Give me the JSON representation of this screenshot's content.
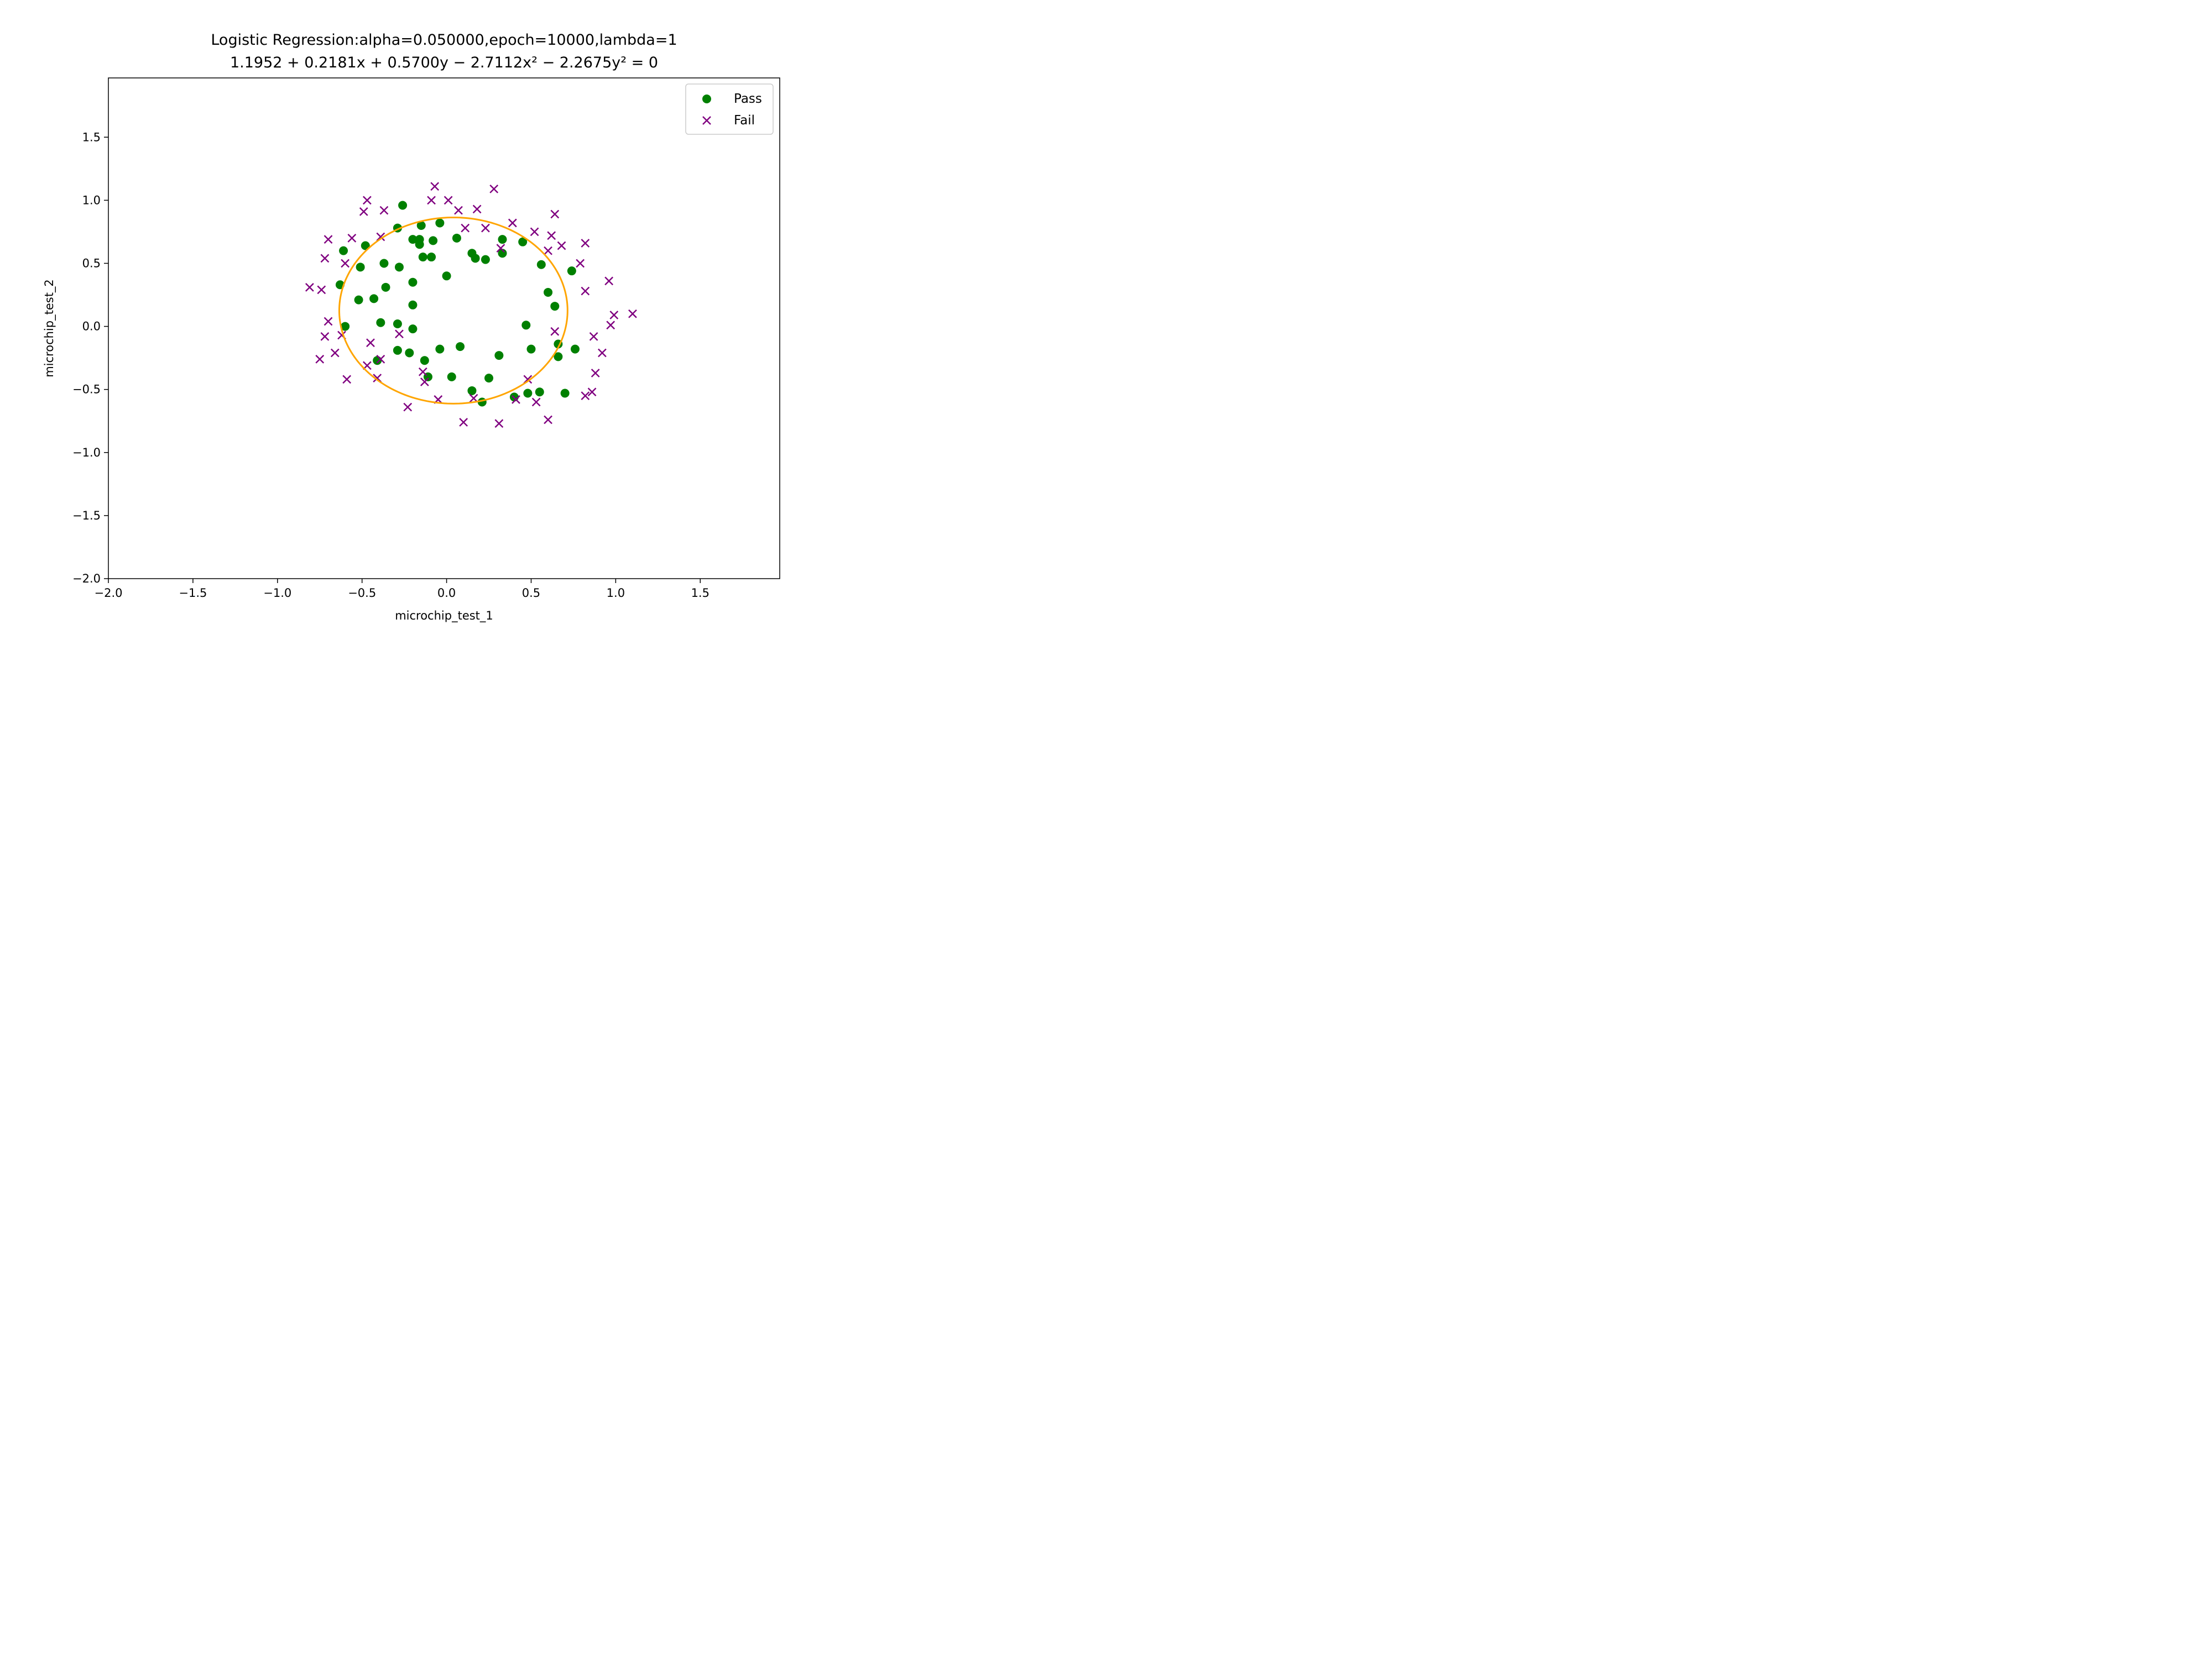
{
  "chart_data": {
    "type": "scatter",
    "title": "Logistic Regression:alpha=0.050000,epoch=10000,lambda=1",
    "subtitle": "1.1952 + 0.2181x + 0.5700y − 2.7112x² − 2.2675y² = 0",
    "xlabel": "microchip_test_1",
    "ylabel": "microchip_test_2",
    "xlim": [
      -2.0,
      1.97
    ],
    "ylim": [
      -2.0,
      1.97
    ],
    "xticks": [
      -2.0,
      -1.5,
      -1.0,
      -0.5,
      0.0,
      0.5,
      1.0,
      1.5
    ],
    "yticks": [
      -2.0,
      -1.5,
      -1.0,
      -0.5,
      0.0,
      0.5,
      1.0,
      1.5
    ],
    "xtick_labels": [
      "−2.0",
      "−1.5",
      "−1.0",
      "−0.5",
      "0.0",
      "0.5",
      "1.0",
      "1.5"
    ],
    "ytick_labels": [
      "−2.0",
      "−1.5",
      "−1.0",
      "−0.5",
      "0.0",
      "0.5",
      "1.0",
      "1.5"
    ],
    "grid": false,
    "legend_position": "top-right",
    "decision_boundary": {
      "type": "ellipse",
      "coefficients": {
        "c": 1.1952,
        "x": 0.2181,
        "y": 0.57,
        "x2": -2.7112,
        "y2": -2.2675
      },
      "color": "#ffa500"
    },
    "series": [
      {
        "name": "Pass",
        "marker": "circle",
        "color": "#008000",
        "points": [
          [
            -0.61,
            0.6
          ],
          [
            -0.48,
            0.64
          ],
          [
            -0.26,
            0.96
          ],
          [
            -0.29,
            0.78
          ],
          [
            -0.15,
            0.8
          ],
          [
            -0.04,
            0.82
          ],
          [
            -0.2,
            0.69
          ],
          [
            -0.16,
            0.65
          ],
          [
            -0.16,
            0.69
          ],
          [
            -0.08,
            0.68
          ],
          [
            -0.14,
            0.55
          ],
          [
            -0.09,
            0.55
          ],
          [
            -0.51,
            0.47
          ],
          [
            -0.37,
            0.5
          ],
          [
            -0.28,
            0.47
          ],
          [
            -0.2,
            0.35
          ],
          [
            0.0,
            0.4
          ],
          [
            0.06,
            0.7
          ],
          [
            0.15,
            0.58
          ],
          [
            0.17,
            0.54
          ],
          [
            0.23,
            0.53
          ],
          [
            0.33,
            0.69
          ],
          [
            0.33,
            0.58
          ],
          [
            0.45,
            0.67
          ],
          [
            0.56,
            0.49
          ],
          [
            0.74,
            0.44
          ],
          [
            0.6,
            0.27
          ],
          [
            0.64,
            0.16
          ],
          [
            -0.63,
            0.33
          ],
          [
            -0.52,
            0.21
          ],
          [
            -0.43,
            0.22
          ],
          [
            -0.36,
            0.31
          ],
          [
            -0.2,
            0.17
          ],
          [
            -0.6,
            0.0
          ],
          [
            -0.39,
            0.03
          ],
          [
            -0.29,
            0.02
          ],
          [
            -0.2,
            -0.02
          ],
          [
            0.47,
            0.01
          ],
          [
            -0.29,
            -0.19
          ],
          [
            -0.22,
            -0.21
          ],
          [
            -0.13,
            -0.27
          ],
          [
            -0.04,
            -0.18
          ],
          [
            0.08,
            -0.16
          ],
          [
            -0.41,
            -0.27
          ],
          [
            0.31,
            -0.23
          ],
          [
            0.5,
            -0.18
          ],
          [
            0.66,
            -0.14
          ],
          [
            0.66,
            -0.24
          ],
          [
            0.76,
            -0.18
          ],
          [
            -0.11,
            -0.4
          ],
          [
            0.03,
            -0.4
          ],
          [
            0.15,
            -0.51
          ],
          [
            0.25,
            -0.41
          ],
          [
            0.21,
            -0.6
          ],
          [
            0.4,
            -0.56
          ],
          [
            0.48,
            -0.53
          ],
          [
            0.55,
            -0.52
          ],
          [
            0.7,
            -0.53
          ]
        ]
      },
      {
        "name": "Fail",
        "marker": "x",
        "color": "#800080",
        "points": [
          [
            -0.47,
            1.0
          ],
          [
            -0.37,
            0.92
          ],
          [
            -0.49,
            0.91
          ],
          [
            -0.07,
            1.11
          ],
          [
            -0.09,
            1.0
          ],
          [
            0.01,
            1.0
          ],
          [
            0.28,
            1.09
          ],
          [
            0.07,
            0.92
          ],
          [
            0.18,
            0.93
          ],
          [
            0.39,
            0.82
          ],
          [
            0.11,
            0.78
          ],
          [
            0.23,
            0.78
          ],
          [
            0.52,
            0.75
          ],
          [
            0.64,
            0.89
          ],
          [
            0.62,
            0.72
          ],
          [
            0.68,
            0.64
          ],
          [
            0.6,
            0.6
          ],
          [
            0.32,
            0.62
          ],
          [
            -0.56,
            0.7
          ],
          [
            -0.39,
            0.71
          ],
          [
            -0.7,
            0.69
          ],
          [
            -0.72,
            0.54
          ],
          [
            -0.6,
            0.5
          ],
          [
            -0.81,
            0.31
          ],
          [
            -0.74,
            0.29
          ],
          [
            0.82,
            0.66
          ],
          [
            0.79,
            0.5
          ],
          [
            0.82,
            0.28
          ],
          [
            0.96,
            0.36
          ],
          [
            -0.7,
            0.04
          ],
          [
            -0.72,
            -0.08
          ],
          [
            -0.62,
            -0.07
          ],
          [
            -0.28,
            -0.06
          ],
          [
            -0.75,
            -0.26
          ],
          [
            -0.66,
            -0.21
          ],
          [
            -0.45,
            -0.13
          ],
          [
            -0.39,
            -0.26
          ],
          [
            -0.47,
            -0.31
          ],
          [
            -0.59,
            -0.42
          ],
          [
            -0.41,
            -0.41
          ],
          [
            -0.14,
            -0.36
          ],
          [
            -0.13,
            -0.44
          ],
          [
            -0.23,
            -0.64
          ],
          [
            -0.05,
            -0.58
          ],
          [
            0.16,
            -0.57
          ],
          [
            0.1,
            -0.76
          ],
          [
            0.31,
            -0.77
          ],
          [
            0.41,
            -0.58
          ],
          [
            0.48,
            -0.42
          ],
          [
            0.53,
            -0.6
          ],
          [
            0.6,
            -0.74
          ],
          [
            0.64,
            -0.04
          ],
          [
            0.87,
            -0.08
          ],
          [
            0.92,
            -0.21
          ],
          [
            0.88,
            -0.37
          ],
          [
            0.82,
            -0.55
          ],
          [
            0.86,
            -0.52
          ],
          [
            0.97,
            0.01
          ],
          [
            0.99,
            0.09
          ],
          [
            1.1,
            0.1
          ]
        ]
      }
    ]
  }
}
